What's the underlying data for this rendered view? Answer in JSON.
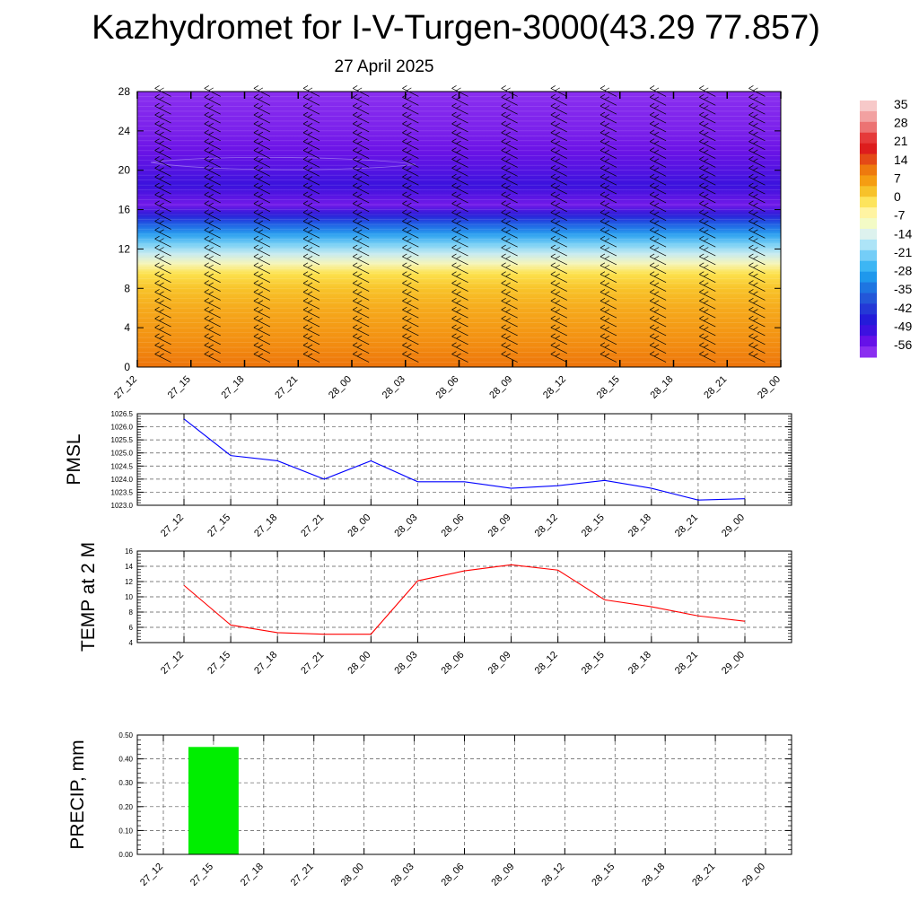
{
  "title": "Kazhydromet for I-V-Turgen-3000(43.29 77.857)",
  "subtitle": "27 April 2025",
  "time_labels": [
    "27_12",
    "27_15",
    "27_18",
    "27_21",
    "28_00",
    "28_03",
    "28_06",
    "28_09",
    "28_12",
    "28_15",
    "28_18",
    "28_21",
    "29_00"
  ],
  "chart_data": [
    {
      "type": "heatmap",
      "title": "",
      "xlabel": "",
      "ylabel": "",
      "ylim": [
        0,
        28
      ],
      "y_ticks": [
        "0",
        "4",
        "8",
        "12",
        "16",
        "20",
        "24",
        "28"
      ],
      "x": [
        "27_12",
        "27_15",
        "27_18",
        "27_21",
        "28_00",
        "28_03",
        "28_06",
        "28_09",
        "28_12",
        "28_15",
        "28_18",
        "28_21",
        "29_00"
      ],
      "temperature_profile": [
        {
          "level": 0,
          "value": 12
        },
        {
          "level": 2,
          "value": 9
        },
        {
          "level": 4,
          "value": 6
        },
        {
          "level": 6,
          "value": 3
        },
        {
          "level": 8,
          "value": -1
        },
        {
          "level": 9.5,
          "value": -6
        },
        {
          "level": 10.5,
          "value": -12
        },
        {
          "level": 11.5,
          "value": -17
        },
        {
          "level": 12.5,
          "value": -24
        },
        {
          "level": 13.5,
          "value": -33
        },
        {
          "level": 14.5,
          "value": -42
        },
        {
          "level": 15.5,
          "value": -50
        },
        {
          "level": 16.5,
          "value": -57
        },
        {
          "level": 17.5,
          "value": -54
        },
        {
          "level": 18.5,
          "value": -52
        },
        {
          "level": 20,
          "value": -54
        },
        {
          "level": 22,
          "value": -56
        },
        {
          "level": 24,
          "value": -58
        },
        {
          "level": 28,
          "value": -60
        }
      ],
      "colorbar_labels": [
        "35",
        "28",
        "21",
        "14",
        "7",
        "0",
        "-7",
        "-14",
        "-21",
        "-28",
        "-35",
        "-42",
        "-49",
        "-56"
      ],
      "colorbar_colors": [
        "#f7c9c9",
        "#f2a1a1",
        "#ec7373",
        "#e53a3a",
        "#dd1d1d",
        "#e44a17",
        "#ee7a0e",
        "#f59d12",
        "#f7c22a",
        "#fde45c",
        "#fff4a2",
        "#f3fbc6",
        "#ddf2ee",
        "#ade4f7",
        "#74cdf7",
        "#3db6f4",
        "#1f98ec",
        "#1e75e1",
        "#2357d8",
        "#2438d6",
        "#241bd9",
        "#3d11e0",
        "#6611e8",
        "#8a2ef0"
      ],
      "wind_barbs": true
    },
    {
      "type": "line",
      "ylabel": "PMSL",
      "ylim": [
        1023.0,
        1026.5
      ],
      "y_ticks": [
        "1023.0",
        "1023.5",
        "1024.0",
        "1024.5",
        "1025.0",
        "1025.5",
        "1026.0",
        "1026.5"
      ],
      "x": [
        "27_12",
        "27_15",
        "27_18",
        "27_21",
        "28_00",
        "28_03",
        "28_06",
        "28_09",
        "28_12",
        "28_15",
        "28_18",
        "28_21",
        "29_00"
      ],
      "series": [
        {
          "values": [
            1026.3,
            1024.9,
            1024.7,
            1024.0,
            1024.7,
            1023.9,
            1023.9,
            1023.65,
            1023.75,
            1023.95,
            1023.65,
            1023.2,
            1023.25
          ],
          "color": "#0000ff"
        }
      ]
    },
    {
      "type": "line",
      "ylabel": "TEMP at 2 M",
      "ylim": [
        4,
        16
      ],
      "y_ticks": [
        "4",
        "6",
        "8",
        "10",
        "12",
        "14",
        "16"
      ],
      "x": [
        "27_12",
        "27_15",
        "27_18",
        "27_21",
        "28_00",
        "28_03",
        "28_06",
        "28_09",
        "28_12",
        "28_15",
        "28_18",
        "28_21",
        "29_00"
      ],
      "series": [
        {
          "values": [
            11.5,
            6.3,
            5.3,
            5.1,
            5.1,
            12.1,
            13.4,
            14.2,
            13.5,
            9.6,
            8.7,
            7.5,
            6.8
          ],
          "color": "#ff0000"
        }
      ]
    },
    {
      "type": "bar",
      "ylabel": "PRECIP, mm",
      "ylim": [
        0,
        0.5
      ],
      "y_ticks": [
        "0.00",
        "0.10",
        "0.20",
        "0.30",
        "0.40",
        "0.50"
      ],
      "categories": [
        "27_12",
        "27_15",
        "27_18",
        "27_21",
        "28_00",
        "28_03",
        "28_06",
        "28_09",
        "28_12",
        "28_15",
        "28_18",
        "28_21",
        "29_00"
      ],
      "values": [
        0,
        0.45,
        0,
        0,
        0,
        0,
        0,
        0,
        0,
        0,
        0,
        0,
        0
      ],
      "color": "#00ee00"
    }
  ]
}
